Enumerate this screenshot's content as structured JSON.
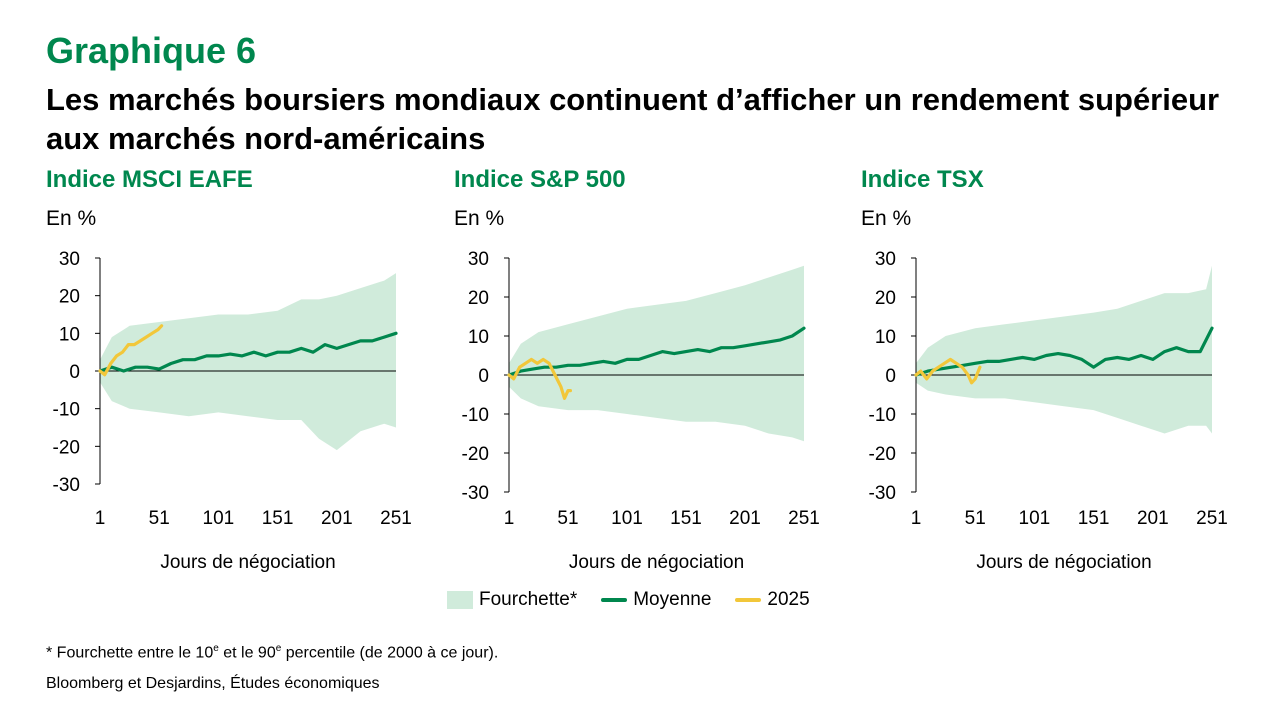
{
  "header": {
    "kicker": "Graphique 6",
    "title": "Les marchés boursiers mondiaux continuent d’afficher un rendement supérieur aux marchés nord-américains"
  },
  "colors": {
    "accent": "#00874e",
    "range_fill": "#d0ebdb",
    "average": "#00874e",
    "year_2025": "#f2c73a"
  },
  "legend": {
    "range": "Fourchette*",
    "average": "Moyenne",
    "year": "2025"
  },
  "footnote": {
    "prefix": "* Fourchette entre le 10",
    "sup1": "e",
    "middle": " et le 90",
    "sup2": "e",
    "suffix": " percentile (de 2000 à ce jour)."
  },
  "source": "Bloomberg et Desjardins, Études économiques",
  "chart_data": [
    {
      "type": "area",
      "title": "Indice MSCI EAFE",
      "ylabel": "En %",
      "xlabel": "Jours de négociation",
      "ylim": [
        -30,
        30
      ],
      "yticks": [
        30,
        20,
        10,
        0,
        -10,
        -20,
        -30
      ],
      "xticks": [
        1,
        51,
        101,
        151,
        201,
        251
      ],
      "xlim": [
        1,
        251
      ],
      "range": {
        "x": [
          1,
          11,
          26,
          51,
          76,
          101,
          126,
          151,
          171,
          186,
          201,
          221,
          241,
          251
        ],
        "upper": [
          3,
          9,
          12,
          13,
          14,
          15,
          15,
          16,
          19,
          19,
          20,
          22,
          24,
          26
        ],
        "lower": [
          -3,
          -8,
          -10,
          -11,
          -12,
          -11,
          -12,
          -13,
          -13,
          -18,
          -21,
          -16,
          -14,
          -15
        ]
      },
      "series": [
        {
          "name": "Moyenne",
          "x": [
            1,
            11,
            21,
            31,
            41,
            51,
            61,
            71,
            81,
            91,
            101,
            111,
            121,
            131,
            141,
            151,
            161,
            171,
            181,
            191,
            201,
            211,
            221,
            231,
            241,
            251
          ],
          "y": [
            0,
            1,
            0,
            1,
            1,
            0.5,
            2,
            3,
            3,
            4,
            4,
            4.5,
            4,
            5,
            4,
            5,
            5,
            6,
            5,
            7,
            6,
            7,
            8,
            8,
            9,
            10
          ]
        },
        {
          "name": "2025",
          "x": [
            1,
            5,
            10,
            15,
            20,
            25,
            30,
            35,
            40,
            45,
            50,
            53
          ],
          "y": [
            0,
            -1,
            2,
            4,
            5,
            7,
            7,
            8,
            9,
            10,
            11,
            12
          ]
        }
      ]
    },
    {
      "type": "area",
      "title": "Indice S&P 500",
      "ylabel": "En %",
      "xlabel": "Jours de négociation",
      "ylim": [
        -30,
        30
      ],
      "yticks": [
        30,
        20,
        10,
        0,
        -10,
        -20,
        -30
      ],
      "xticks": [
        1,
        51,
        101,
        151,
        201,
        251
      ],
      "xlim": [
        1,
        251
      ],
      "range": {
        "x": [
          1,
          11,
          26,
          51,
          76,
          101,
          126,
          151,
          176,
          201,
          221,
          241,
          251
        ],
        "upper": [
          3,
          8,
          11,
          13,
          15,
          17,
          18,
          19,
          21,
          23,
          25,
          27,
          28
        ],
        "lower": [
          -3,
          -6,
          -8,
          -9,
          -9,
          -10,
          -11,
          -12,
          -12,
          -13,
          -15,
          -16,
          -17
        ]
      },
      "series": [
        {
          "name": "Moyenne",
          "x": [
            1,
            11,
            21,
            31,
            41,
            51,
            61,
            71,
            81,
            91,
            101,
            111,
            121,
            131,
            141,
            151,
            161,
            171,
            181,
            191,
            201,
            211,
            221,
            231,
            241,
            251
          ],
          "y": [
            0,
            1,
            1.5,
            2,
            2,
            2.5,
            2.5,
            3,
            3.5,
            3,
            4,
            4,
            5,
            6,
            5.5,
            6,
            6.5,
            6,
            7,
            7,
            7.5,
            8,
            8.5,
            9,
            10,
            12
          ]
        },
        {
          "name": "2025",
          "x": [
            1,
            5,
            10,
            15,
            20,
            25,
            30,
            35,
            40,
            45,
            48,
            51,
            53
          ],
          "y": [
            0,
            -1,
            2,
            3,
            4,
            3,
            4,
            3,
            0,
            -3,
            -6,
            -4,
            -4
          ]
        }
      ]
    },
    {
      "type": "area",
      "title": "Indice TSX",
      "ylabel": "En %",
      "xlabel": "Jours de négociation",
      "ylim": [
        -30,
        30
      ],
      "yticks": [
        30,
        20,
        10,
        0,
        -10,
        -20,
        -30
      ],
      "xticks": [
        1,
        51,
        101,
        151,
        201,
        251
      ],
      "xlim": [
        1,
        251
      ],
      "range": {
        "x": [
          1,
          11,
          26,
          51,
          76,
          101,
          126,
          151,
          171,
          191,
          211,
          231,
          246,
          251
        ],
        "upper": [
          3,
          7,
          10,
          12,
          13,
          14,
          15,
          16,
          17,
          19,
          21,
          21,
          22,
          28
        ],
        "lower": [
          -2,
          -4,
          -5,
          -6,
          -6,
          -7,
          -8,
          -9,
          -11,
          -13,
          -15,
          -13,
          -13,
          -15
        ]
      },
      "series": [
        {
          "name": "Moyenne",
          "x": [
            1,
            11,
            21,
            31,
            41,
            51,
            61,
            71,
            81,
            91,
            101,
            111,
            121,
            131,
            141,
            151,
            161,
            171,
            181,
            191,
            201,
            211,
            221,
            231,
            241,
            251
          ],
          "y": [
            0,
            1,
            1.5,
            2,
            2.5,
            3,
            3.5,
            3.5,
            4,
            4.5,
            4,
            5,
            5.5,
            5,
            4,
            2,
            4,
            4.5,
            4,
            5,
            4,
            6,
            7,
            6,
            6,
            12
          ]
        },
        {
          "name": "2025",
          "x": [
            1,
            5,
            10,
            15,
            20,
            25,
            30,
            35,
            40,
            45,
            48,
            51,
            55
          ],
          "y": [
            0,
            1,
            -1,
            1,
            2,
            3,
            4,
            3,
            2,
            0,
            -2,
            -1,
            2
          ]
        }
      ]
    }
  ]
}
